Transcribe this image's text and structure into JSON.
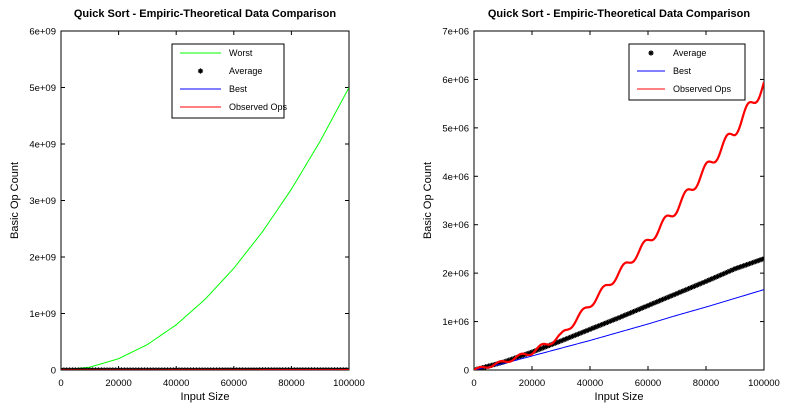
{
  "chart_data": [
    {
      "type": "line",
      "title": "Quick Sort - Empiric-Theoretical Data Comparison",
      "xlabel": "Input Size",
      "ylabel": "Basic Op Count",
      "xlim": [
        0,
        100000
      ],
      "ylim": [
        0,
        6000000000
      ],
      "xticks": [
        0,
        20000,
        40000,
        60000,
        80000,
        100000
      ],
      "xtick_labels": [
        "0",
        "20000",
        "40000",
        "60000",
        "80000",
        "100000"
      ],
      "yticks": [
        0,
        1000000000,
        2000000000,
        3000000000,
        4000000000,
        5000000000,
        6000000000
      ],
      "ytick_labels": [
        "0",
        "1e+09",
        "2e+09",
        "3e+09",
        "4e+09",
        "5e+09",
        "6e+09"
      ],
      "legend_position": "top-right",
      "series": [
        {
          "name": "Worst",
          "style": "line",
          "color": "#00ff00",
          "x": [
            0,
            10000,
            20000,
            30000,
            40000,
            50000,
            60000,
            70000,
            80000,
            90000,
            100000
          ],
          "values": [
            0,
            50000000,
            200000000,
            450000000,
            800000000,
            1250000000,
            1800000000,
            2450000000,
            3200000000,
            4050000000,
            5000000000
          ]
        },
        {
          "name": "Average",
          "style": "marker",
          "color": "#000000",
          "x": [
            0,
            10000,
            20000,
            30000,
            40000,
            50000,
            60000,
            70000,
            80000,
            90000,
            100000
          ],
          "values": [
            0,
            160000,
            370000,
            600000,
            840000,
            1080000,
            1330000,
            1580000,
            1830000,
            2090000,
            2300000
          ]
        },
        {
          "name": "Best",
          "style": "line",
          "color": "#0000ff",
          "x": [
            0,
            10000,
            20000,
            30000,
            40000,
            50000,
            60000,
            70000,
            80000,
            90000,
            100000
          ],
          "values": [
            0,
            130000,
            290000,
            450000,
            610000,
            780000,
            950000,
            1130000,
            1300000,
            1480000,
            1660000
          ]
        },
        {
          "name": "Observed Ops",
          "style": "line",
          "color": "#ff0000",
          "x": [
            0,
            10000,
            20000,
            30000,
            40000,
            50000,
            60000,
            70000,
            80000,
            90000,
            100000
          ],
          "values": [
            0,
            160000,
            370000,
            700000,
            1350000,
            2000000,
            2650000,
            3350000,
            4150000,
            4950000,
            5900000
          ]
        }
      ]
    },
    {
      "type": "line",
      "title": "Quick Sort - Empiric-Theoretical Data Comparison",
      "xlabel": "Input Size",
      "ylabel": "Basic Op Count",
      "xlim": [
        0,
        100000
      ],
      "ylim": [
        0,
        7000000
      ],
      "xticks": [
        0,
        20000,
        40000,
        60000,
        80000,
        100000
      ],
      "xtick_labels": [
        "0",
        "20000",
        "40000",
        "60000",
        "80000",
        "100000"
      ],
      "yticks": [
        0,
        1000000,
        2000000,
        3000000,
        4000000,
        5000000,
        6000000,
        7000000
      ],
      "ytick_labels": [
        "0",
        "1e+06",
        "2e+06",
        "3e+06",
        "4e+06",
        "5e+06",
        "6e+06",
        "7e+06"
      ],
      "legend_position": "top-right",
      "series": [
        {
          "name": "Average",
          "style": "marker",
          "color": "#000000",
          "x": [
            0,
            10000,
            20000,
            30000,
            40000,
            50000,
            60000,
            70000,
            80000,
            90000,
            100000
          ],
          "values": [
            0,
            160000,
            370000,
            600000,
            840000,
            1080000,
            1330000,
            1580000,
            1830000,
            2090000,
            2300000
          ]
        },
        {
          "name": "Best",
          "style": "line",
          "color": "#0000ff",
          "x": [
            0,
            10000,
            20000,
            30000,
            40000,
            50000,
            60000,
            70000,
            80000,
            90000,
            100000
          ],
          "values": [
            0,
            130000,
            290000,
            450000,
            610000,
            780000,
            950000,
            1130000,
            1300000,
            1480000,
            1660000
          ]
        },
        {
          "name": "Observed Ops",
          "style": "line",
          "color": "#ff0000",
          "x": [
            0,
            10000,
            20000,
            30000,
            40000,
            50000,
            60000,
            70000,
            80000,
            90000,
            100000
          ],
          "values": [
            0,
            160000,
            370000,
            700000,
            1350000,
            2000000,
            2650000,
            3350000,
            4150000,
            4950000,
            5900000
          ]
        }
      ]
    }
  ]
}
